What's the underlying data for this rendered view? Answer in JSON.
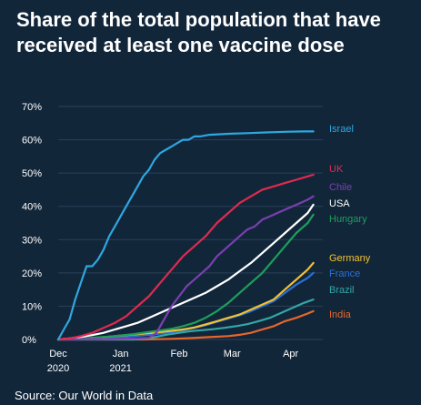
{
  "title_lines": [
    "Share of the total population that have",
    "received at least one vaccine dose"
  ],
  "source": "Source: Our World in Data",
  "chart_data": {
    "type": "line",
    "title": "Share of the total population that have received at least one vaccine dose",
    "y_ticks": [
      "0%",
      "10%",
      "20%",
      "30%",
      "40%",
      "50%",
      "60%",
      "70%"
    ],
    "ylim": [
      0,
      70
    ],
    "x_range_days": [
      0,
      140
    ],
    "x_ticks": [
      {
        "day": 0,
        "lines": [
          "Dec",
          "2020"
        ]
      },
      {
        "day": 33,
        "lines": [
          "Jan",
          "2021"
        ]
      },
      {
        "day": 64,
        "lines": [
          "Feb"
        ]
      },
      {
        "day": 92,
        "lines": [
          "Mar"
        ]
      },
      {
        "day": 123,
        "lines": [
          "Apr"
        ]
      }
    ],
    "grid": true,
    "background": "#12263a",
    "series": [
      {
        "name": "Israel",
        "color": "#2ea7e0",
        "points": [
          [
            0,
            0
          ],
          [
            3,
            3
          ],
          [
            6,
            6
          ],
          [
            9,
            12
          ],
          [
            12,
            17
          ],
          [
            15,
            22
          ],
          [
            18,
            22
          ],
          [
            21,
            24
          ],
          [
            24,
            27
          ],
          [
            27,
            31
          ],
          [
            30,
            34
          ],
          [
            33,
            37
          ],
          [
            36,
            40
          ],
          [
            39,
            43
          ],
          [
            42,
            46
          ],
          [
            45,
            49
          ],
          [
            48,
            51
          ],
          [
            51,
            54
          ],
          [
            54,
            56
          ],
          [
            57,
            57
          ],
          [
            60,
            58
          ],
          [
            63,
            59
          ],
          [
            66,
            60
          ],
          [
            69,
            60
          ],
          [
            72,
            61
          ],
          [
            75,
            61
          ],
          [
            80,
            61.5
          ],
          [
            90,
            61.8
          ],
          [
            100,
            62
          ],
          [
            110,
            62.2
          ],
          [
            120,
            62.4
          ],
          [
            130,
            62.5
          ],
          [
            135,
            62.5
          ]
        ]
      },
      {
        "name": "UK",
        "color": "#e02a4e",
        "points": [
          [
            0,
            0
          ],
          [
            6,
            0.3
          ],
          [
            12,
            1
          ],
          [
            18,
            2
          ],
          [
            24,
            3.5
          ],
          [
            30,
            5
          ],
          [
            36,
            7
          ],
          [
            42,
            10
          ],
          [
            48,
            13
          ],
          [
            54,
            17
          ],
          [
            60,
            21
          ],
          [
            66,
            25
          ],
          [
            72,
            28
          ],
          [
            78,
            31
          ],
          [
            84,
            35
          ],
          [
            90,
            38
          ],
          [
            96,
            41
          ],
          [
            102,
            43
          ],
          [
            108,
            45
          ],
          [
            114,
            46
          ],
          [
            120,
            47
          ],
          [
            126,
            48
          ],
          [
            132,
            49
          ],
          [
            135,
            49.5
          ]
        ]
      },
      {
        "name": "Chile",
        "color": "#7b3fb0",
        "points": [
          [
            0,
            0
          ],
          [
            20,
            0.1
          ],
          [
            30,
            0.2
          ],
          [
            40,
            0.3
          ],
          [
            48,
            0.5
          ],
          [
            52,
            2
          ],
          [
            56,
            6
          ],
          [
            60,
            10
          ],
          [
            64,
            13
          ],
          [
            68,
            16
          ],
          [
            72,
            18
          ],
          [
            76,
            20
          ],
          [
            80,
            22
          ],
          [
            84,
            25
          ],
          [
            88,
            27
          ],
          [
            92,
            29
          ],
          [
            96,
            31
          ],
          [
            100,
            33
          ],
          [
            104,
            34
          ],
          [
            108,
            36
          ],
          [
            112,
            37
          ],
          [
            116,
            38
          ],
          [
            120,
            39
          ],
          [
            124,
            40
          ],
          [
            128,
            41
          ],
          [
            132,
            42
          ],
          [
            135,
            43
          ]
        ]
      },
      {
        "name": "USA",
        "color": "#ffffff",
        "points": [
          [
            0,
            0
          ],
          [
            6,
            0.3
          ],
          [
            12,
            0.8
          ],
          [
            18,
            1.3
          ],
          [
            24,
            2
          ],
          [
            30,
            3
          ],
          [
            36,
            4
          ],
          [
            42,
            5
          ],
          [
            48,
            6.5
          ],
          [
            54,
            8
          ],
          [
            60,
            9.5
          ],
          [
            66,
            11
          ],
          [
            72,
            12.5
          ],
          [
            78,
            14
          ],
          [
            84,
            16
          ],
          [
            90,
            18
          ],
          [
            96,
            20.5
          ],
          [
            102,
            23
          ],
          [
            108,
            26
          ],
          [
            114,
            29
          ],
          [
            120,
            32
          ],
          [
            126,
            35
          ],
          [
            132,
            38
          ],
          [
            135,
            40.5
          ]
        ]
      },
      {
        "name": "Hungary",
        "color": "#1e9e5c",
        "points": [
          [
            0,
            0
          ],
          [
            10,
            0.2
          ],
          [
            20,
            0.6
          ],
          [
            30,
            1
          ],
          [
            40,
            1.6
          ],
          [
            50,
            2.4
          ],
          [
            60,
            3.2
          ],
          [
            66,
            4
          ],
          [
            72,
            5
          ],
          [
            78,
            6.5
          ],
          [
            84,
            8.5
          ],
          [
            90,
            11
          ],
          [
            96,
            14
          ],
          [
            102,
            17
          ],
          [
            108,
            20
          ],
          [
            114,
            24
          ],
          [
            120,
            28
          ],
          [
            126,
            32
          ],
          [
            132,
            35
          ],
          [
            135,
            37.5
          ]
        ]
      },
      {
        "name": "Germany",
        "color": "#f2c230",
        "points": [
          [
            0,
            0
          ],
          [
            10,
            0.2
          ],
          [
            20,
            0.5
          ],
          [
            30,
            1
          ],
          [
            40,
            1.5
          ],
          [
            50,
            2
          ],
          [
            60,
            2.6
          ],
          [
            66,
            3
          ],
          [
            72,
            3.6
          ],
          [
            78,
            4.5
          ],
          [
            84,
            5.5
          ],
          [
            90,
            6.5
          ],
          [
            96,
            7.5
          ],
          [
            102,
            9
          ],
          [
            108,
            10.5
          ],
          [
            114,
            12
          ],
          [
            120,
            15
          ],
          [
            126,
            18
          ],
          [
            132,
            21
          ],
          [
            135,
            23
          ]
        ]
      },
      {
        "name": "France",
        "color": "#2c6fd6",
        "points": [
          [
            0,
            0
          ],
          [
            10,
            0.1
          ],
          [
            20,
            0.3
          ],
          [
            30,
            0.6
          ],
          [
            40,
            1
          ],
          [
            50,
            1.5
          ],
          [
            60,
            2.2
          ],
          [
            66,
            2.8
          ],
          [
            72,
            3.5
          ],
          [
            78,
            4.3
          ],
          [
            84,
            5.3
          ],
          [
            90,
            6.3
          ],
          [
            96,
            7.3
          ],
          [
            102,
            8.5
          ],
          [
            108,
            10
          ],
          [
            114,
            11.5
          ],
          [
            120,
            14
          ],
          [
            126,
            16.5
          ],
          [
            132,
            18.5
          ],
          [
            135,
            20
          ]
        ]
      },
      {
        "name": "Brazil",
        "color": "#33a6a6",
        "points": [
          [
            0,
            0
          ],
          [
            40,
            0
          ],
          [
            46,
            0.3
          ],
          [
            52,
            0.8
          ],
          [
            58,
            1.5
          ],
          [
            64,
            2
          ],
          [
            70,
            2.5
          ],
          [
            76,
            2.8
          ],
          [
            82,
            3.1
          ],
          [
            88,
            3.5
          ],
          [
            94,
            4
          ],
          [
            100,
            4.6
          ],
          [
            106,
            5.5
          ],
          [
            112,
            6.5
          ],
          [
            118,
            8
          ],
          [
            124,
            9.5
          ],
          [
            130,
            11
          ],
          [
            135,
            12
          ]
        ]
      },
      {
        "name": "India",
        "color": "#e8662a",
        "points": [
          [
            0,
            0
          ],
          [
            45,
            0
          ],
          [
            50,
            0.05
          ],
          [
            60,
            0.2
          ],
          [
            70,
            0.4
          ],
          [
            80,
            0.7
          ],
          [
            90,
            1
          ],
          [
            96,
            1.4
          ],
          [
            102,
            2
          ],
          [
            108,
            3
          ],
          [
            114,
            4
          ],
          [
            120,
            5.5
          ],
          [
            126,
            6.5
          ],
          [
            132,
            7.8
          ],
          [
            135,
            8.5
          ]
        ]
      }
    ]
  }
}
